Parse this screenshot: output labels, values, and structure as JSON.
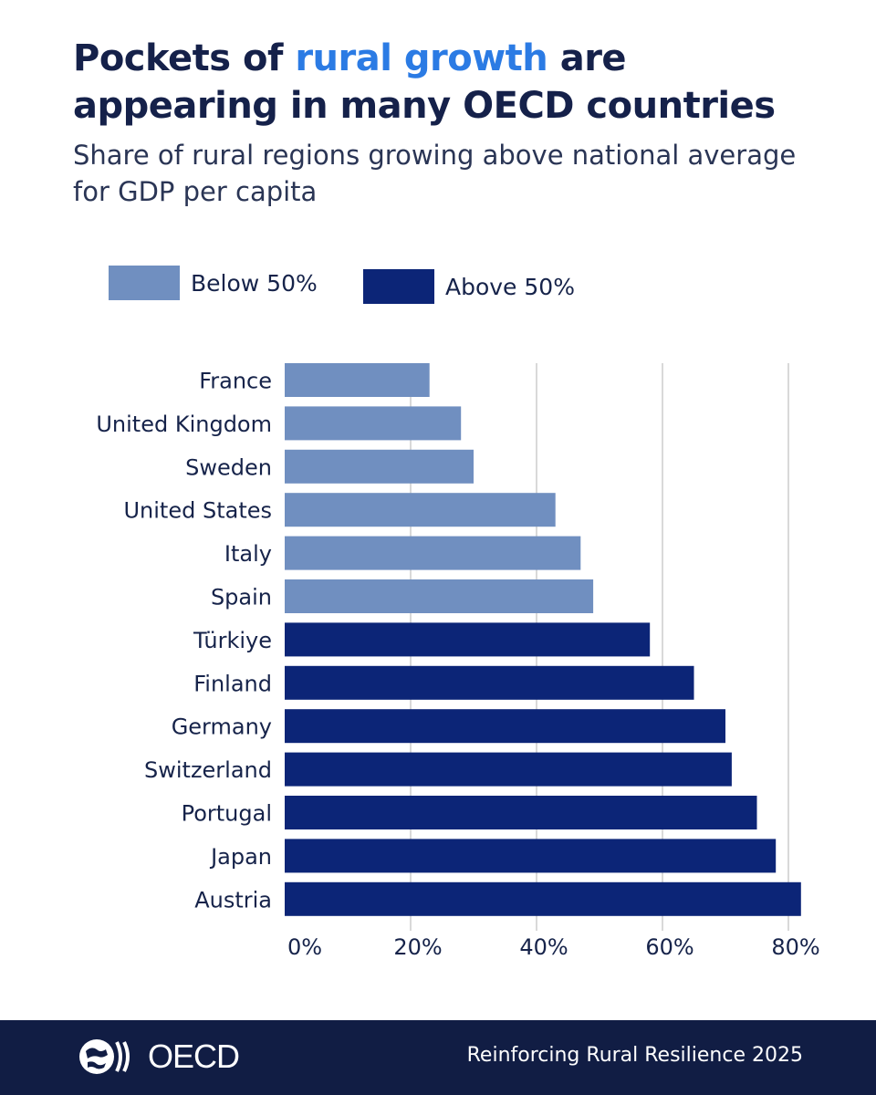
{
  "header": {
    "title_prefix": "Pockets of ",
    "title_highlight": "rural growth",
    "title_suffix": " are appearing in many OECD countries",
    "subtitle": "Share of rural regions growing above national average for GDP per capita"
  },
  "legend": {
    "below_label": "Below 50%",
    "above_label": "Above 50%"
  },
  "colors": {
    "below": "#708fc0",
    "above": "#0c2577",
    "highlight": "#2b7be4",
    "footer_bg": "#111d44"
  },
  "chart_data": {
    "type": "bar",
    "orientation": "horizontal",
    "title": "Share of rural regions growing above national average for GDP per capita",
    "xlabel": "",
    "ylabel": "",
    "xlim": [
      0,
      80
    ],
    "grid": true,
    "categories": [
      "France",
      "United Kingdom",
      "Sweden",
      "United States",
      "Italy",
      "Spain",
      "Türkiye",
      "Finland",
      "Germany",
      "Switzerland",
      "Portugal",
      "Japan",
      "Austria"
    ],
    "values": [
      23,
      28,
      30,
      43,
      47,
      49,
      58,
      65,
      70,
      71,
      75,
      78,
      82
    ],
    "groups": [
      "below",
      "below",
      "below",
      "below",
      "below",
      "below",
      "above",
      "above",
      "above",
      "above",
      "above",
      "above",
      "above"
    ],
    "ticks": [
      0,
      20,
      40,
      60,
      80
    ],
    "tick_labels": [
      "0%",
      "20%",
      "40%",
      "60%",
      "80%"
    ],
    "legend": [
      "Below 50%",
      "Above 50%"
    ]
  },
  "footer": {
    "logo_text": "OECD",
    "source": "Reinforcing Rural Resilience 2025"
  }
}
